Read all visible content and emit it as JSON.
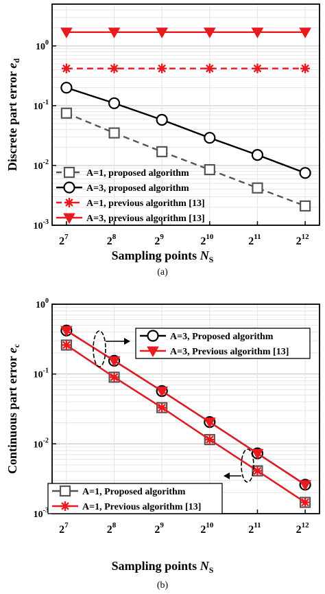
{
  "chart_data": [
    {
      "type": "line",
      "panel_label": "(a)",
      "xlabel_main": "Sampling points ",
      "xlabel_italic": "N",
      "xlabel_sub": "S",
      "ylabel_main": "Discrete part error ",
      "ylabel_italic": "e",
      "ylabel_sub": "d",
      "x_scale": "log2",
      "y_scale": "log10",
      "x": [
        128,
        256,
        512,
        1024,
        2048,
        4096
      ],
      "x_tick_labels": [
        {
          "base": "2",
          "exp": "7"
        },
        {
          "base": "2",
          "exp": "8"
        },
        {
          "base": "2",
          "exp": "9"
        },
        {
          "base": "2",
          "exp": "10"
        },
        {
          "base": "2",
          "exp": "11"
        },
        {
          "base": "2",
          "exp": "12"
        }
      ],
      "ylim": [
        0.001,
        5
      ],
      "y_ticks": [
        {
          "value": 0.001,
          "base": "10",
          "exp": "-3"
        },
        {
          "value": 0.01,
          "base": "10",
          "exp": "-2"
        },
        {
          "value": 0.1,
          "base": "10",
          "exp": "-1"
        },
        {
          "value": 1,
          "base": "10",
          "exp": "0"
        }
      ],
      "grid": true,
      "legend_position": "bottom-left",
      "series": [
        {
          "name": "A=1, proposed algorithm",
          "values": [
            0.075,
            0.035,
            0.017,
            0.0085,
            0.0042,
            0.0021
          ],
          "color": "#555555",
          "dash": "dashed",
          "marker": "square"
        },
        {
          "name": "A=3, proposed algorithm",
          "values": [
            0.2,
            0.11,
            0.058,
            0.029,
            0.015,
            0.0075
          ],
          "color": "#000000",
          "dash": "solid",
          "marker": "circle"
        },
        {
          "name": "A=1, previous algorithm [13]",
          "values": [
            0.42,
            0.42,
            0.42,
            0.42,
            0.42,
            0.42
          ],
          "color": "#e8191f",
          "dash": "dashed",
          "marker": "star"
        },
        {
          "name": "A=3, previous algorithm [13]",
          "values": [
            1.7,
            1.7,
            1.7,
            1.7,
            1.7,
            1.7
          ],
          "color": "#e8191f",
          "dash": "solid",
          "marker": "triangle-down"
        }
      ]
    },
    {
      "type": "line",
      "panel_label": "(b)",
      "xlabel_main": "Sampling points ",
      "xlabel_italic": "N",
      "xlabel_sub": "S",
      "ylabel_main": "Continuous part error ",
      "ylabel_italic": "e",
      "ylabel_sub": "c",
      "x_scale": "log2",
      "y_scale": "log10",
      "x": [
        128,
        256,
        512,
        1024,
        2048,
        4096
      ],
      "x_tick_labels": [
        {
          "base": "2",
          "exp": "7"
        },
        {
          "base": "2",
          "exp": "8"
        },
        {
          "base": "2",
          "exp": "9"
        },
        {
          "base": "2",
          "exp": "10"
        },
        {
          "base": "2",
          "exp": "11"
        },
        {
          "base": "2",
          "exp": "12"
        }
      ],
      "ylim": [
        0.001,
        1
      ],
      "y_ticks": [
        {
          "value": 0.001,
          "base": "10",
          "exp": "-3"
        },
        {
          "value": 0.01,
          "base": "10",
          "exp": "-2"
        },
        {
          "value": 0.1,
          "base": "10",
          "exp": "-1"
        },
        {
          "value": 1,
          "base": "10",
          "exp": "0"
        }
      ],
      "grid": true,
      "legend_positions": [
        "top-right",
        "bottom-left"
      ],
      "series": [
        {
          "name": "A=3, Proposed algorithm",
          "values": [
            0.42,
            0.155,
            0.057,
            0.0205,
            0.0073,
            0.0026
          ],
          "color": "#000000",
          "dash": "solid",
          "marker": "circle",
          "legend": "upper"
        },
        {
          "name": "A=3, Previous algorithm [13]",
          "values": [
            0.42,
            0.155,
            0.057,
            0.0205,
            0.0073,
            0.0026
          ],
          "color": "#e8191f",
          "dash": "solid",
          "marker": "triangle-down",
          "legend": "upper"
        },
        {
          "name": "A=1, Proposed algorithm",
          "values": [
            0.26,
            0.09,
            0.033,
            0.0115,
            0.0041,
            0.00145
          ],
          "color": "#555555",
          "dash": "solid",
          "marker": "square",
          "legend": "lower"
        },
        {
          "name": "A=1, Previous algorithm [13]",
          "values": [
            0.26,
            0.09,
            0.033,
            0.0115,
            0.0041,
            0.00145
          ],
          "color": "#e8191f",
          "dash": "solid",
          "marker": "star",
          "legend": "lower"
        }
      ]
    }
  ]
}
